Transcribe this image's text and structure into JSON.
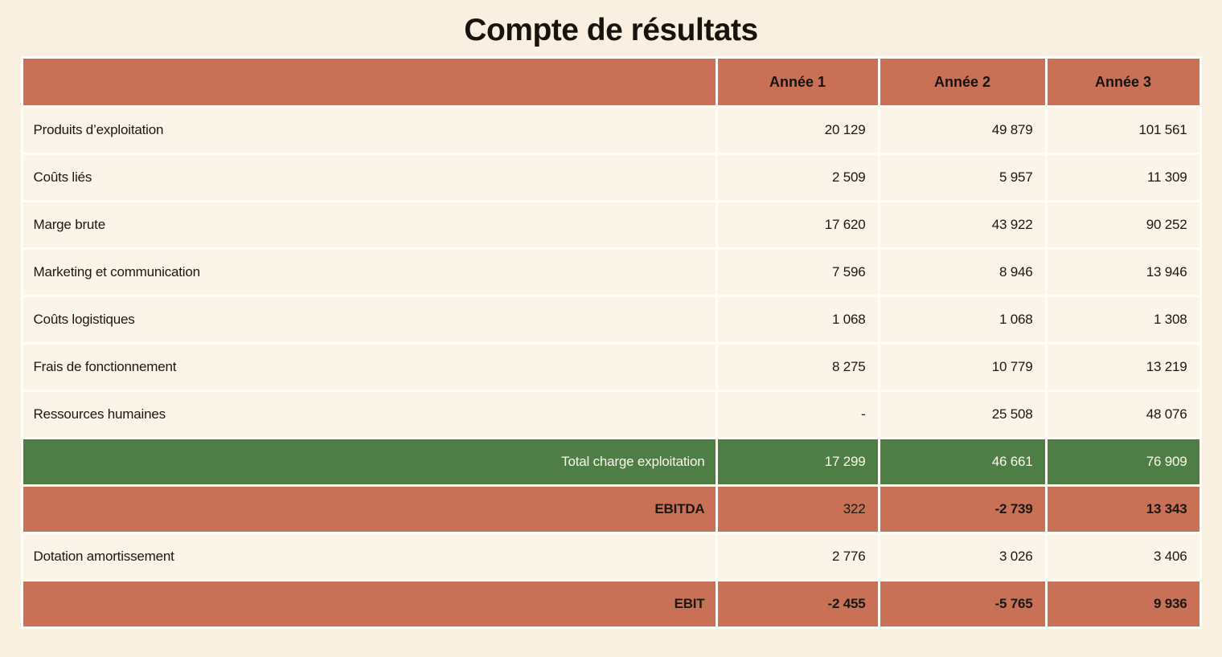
{
  "page": {
    "title": "Compte de résultats"
  },
  "colors": {
    "background": "#f9f0e2",
    "cell": "#fbf4e8",
    "separator": "#fffdf6",
    "terracotta": "#c97156",
    "green": "#4e7d46",
    "text": "#1b1712",
    "light_text": "#fcf7ec"
  },
  "table": {
    "columns": [
      "",
      "Année 1",
      "Année 2",
      "Année 3"
    ],
    "rows": [
      {
        "label": "Produits d’exploitation",
        "values": [
          "20 129",
          "49 879",
          "101 561"
        ],
        "style": "normal"
      },
      {
        "label": "Coûts liés",
        "values": [
          "2 509",
          "5 957",
          "11 309"
        ],
        "style": "normal"
      },
      {
        "label": "Marge brute",
        "values": [
          "17 620",
          "43 922",
          "90 252"
        ],
        "style": "normal"
      },
      {
        "label": "Marketing et communication",
        "values": [
          "7 596",
          "8 946",
          "13 946"
        ],
        "style": "normal"
      },
      {
        "label": "Coûts logistiques",
        "values": [
          "1 068",
          "1 068",
          "1 308"
        ],
        "style": "normal"
      },
      {
        "label": "Frais de fonctionnement",
        "values": [
          "8 275",
          "10 779",
          "13 219"
        ],
        "style": "normal"
      },
      {
        "label": "Ressources humaines",
        "values": [
          "-",
          "25 508",
          "48 076"
        ],
        "style": "normal"
      },
      {
        "label": "Total charge exploitation",
        "values": [
          "17 299",
          "46 661",
          "76 909"
        ],
        "style": "total-green",
        "bold_values": [
          false,
          false,
          false
        ]
      },
      {
        "label": "EBITDA",
        "values": [
          "322",
          "-2 739",
          "13 343"
        ],
        "style": "total-terracotta",
        "bold_values": [
          false,
          true,
          true
        ]
      },
      {
        "label": "Dotation amortissement",
        "values": [
          "2 776",
          "3 026",
          "3 406"
        ],
        "style": "normal"
      },
      {
        "label": "EBIT",
        "values": [
          "-2 455",
          "-5 765",
          "9 936"
        ],
        "style": "total-terracotta",
        "bold_values": [
          true,
          true,
          true
        ]
      }
    ]
  }
}
